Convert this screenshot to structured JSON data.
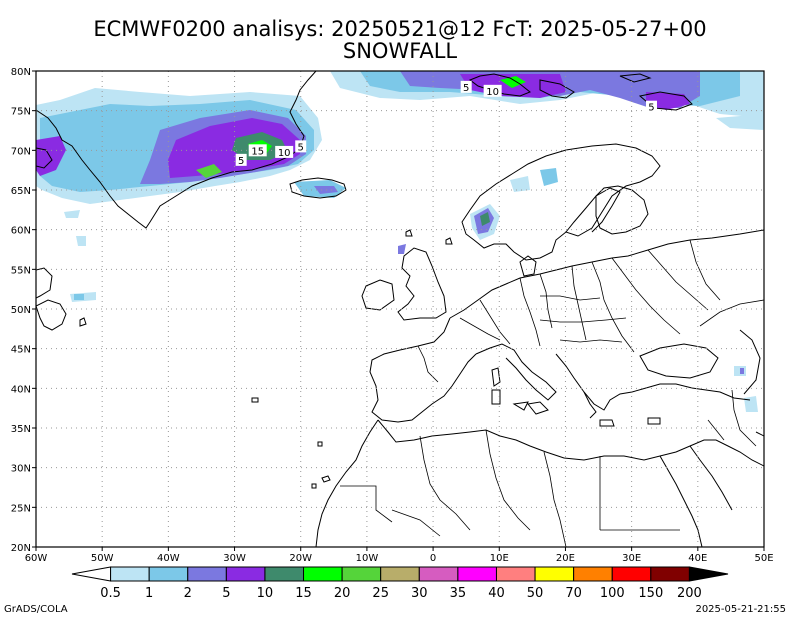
{
  "title_line1": "ECMWF0200 analisys: 20250521@12 FcT: 2025-05-27+00",
  "title_line2": "SNOWFALL",
  "footer_left": "GrADS/COLA",
  "footer_right": "2025-05-21-21:55",
  "map": {
    "lon_range": [
      -60,
      50
    ],
    "lat_range": [
      20,
      80
    ],
    "lat_ticks": [
      "20N",
      "25N",
      "30N",
      "35N",
      "40N",
      "45N",
      "50N",
      "55N",
      "60N",
      "65N",
      "70N",
      "75N",
      "80N"
    ],
    "lon_ticks": [
      "60W",
      "50W",
      "40W",
      "30W",
      "20W",
      "10W",
      "0",
      "10E",
      "20E",
      "30E",
      "40E",
      "50E"
    ],
    "grid": true
  },
  "colorbar": {
    "labels": [
      "0.5",
      "1",
      "2",
      "5",
      "10",
      "15",
      "20",
      "25",
      "30",
      "35",
      "40",
      "50",
      "70",
      "100",
      "150",
      "200"
    ],
    "colors": [
      "#ffffff",
      "#bde4f4",
      "#7cc8e8",
      "#7b78e0",
      "#8a2be2",
      "#3e8a6c",
      "#00ff00",
      "#55d43a",
      "#b8ad6a",
      "#d65cc0",
      "#ff00ff",
      "#ff7f7f",
      "#ffff00",
      "#ff8000",
      "#ff0000",
      "#800000",
      "#000000"
    ]
  },
  "contour_labels": [
    {
      "text": "5",
      "lon": 5,
      "lat": 78
    },
    {
      "text": "10",
      "lon": 9,
      "lat": 77.5
    },
    {
      "text": "5",
      "lon": 33,
      "lat": 75.5
    },
    {
      "text": "15",
      "lon": -26.5,
      "lat": 70
    },
    {
      "text": "10",
      "lon": -22.5,
      "lat": 69.8
    },
    {
      "text": "5",
      "lon": -20,
      "lat": 70.5
    },
    {
      "text": "5",
      "lon": -29,
      "lat": 68.8
    }
  ]
}
